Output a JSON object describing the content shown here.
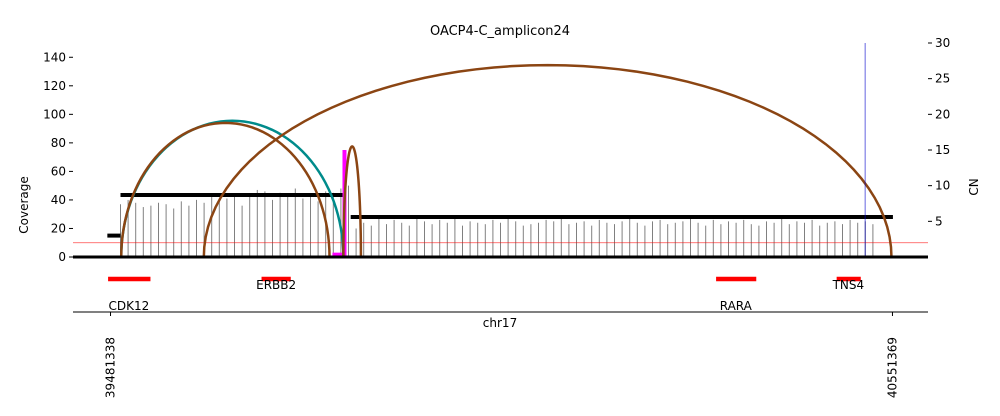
{
  "chart_data": {
    "type": "line",
    "title": "OACP4-C_amplicon24",
    "ylabel_left": "Coverage",
    "ylabel_right": "CN",
    "xlabel": "chr17",
    "xlim": [
      39430000,
      40600000
    ],
    "ylim_left": [
      0,
      150
    ],
    "ylim_right": [
      0,
      30
    ],
    "left_ticks": [
      0,
      20,
      40,
      60,
      80,
      100,
      120,
      140
    ],
    "right_ticks": [
      5,
      10,
      15,
      20,
      25,
      30
    ],
    "x_tick_labels": [
      "39481338",
      "40551369"
    ],
    "cn_threshold_line": 2,
    "coverage_bars": {
      "start": 39495000,
      "end": 40535000,
      "step": 10400,
      "heights": [
        37,
        40,
        38,
        35,
        36,
        38,
        37,
        34,
        39,
        36,
        40,
        38,
        42,
        39,
        41,
        44,
        36,
        43,
        47,
        46,
        40,
        45,
        44,
        48,
        41,
        43,
        39,
        46,
        45,
        48,
        50,
        20,
        24,
        22,
        27,
        23,
        26,
        24,
        22,
        28,
        25,
        23,
        26,
        24,
        27,
        22,
        25,
        24,
        23,
        26,
        24,
        28,
        25,
        22,
        23,
        24,
        26,
        25,
        27,
        23,
        24,
        25,
        22,
        26,
        24,
        23,
        25,
        27,
        24,
        22,
        25,
        26,
        23,
        24,
        25,
        28,
        24,
        22,
        26,
        23,
        25,
        24,
        26,
        23,
        22,
        25,
        24,
        27,
        23,
        25,
        24,
        26,
        22,
        24,
        25,
        23,
        26,
        24,
        25,
        23
      ]
    },
    "cn_segments": [
      {
        "x0": 39477000,
        "x1": 39495000,
        "cn": 3
      },
      {
        "x0": 39495000,
        "x1": 39802000,
        "cn": 8.7
      },
      {
        "x0": 39810000,
        "x1": 40552000,
        "cn": 5.6
      }
    ],
    "breakpoints": [
      {
        "x0": 39496000,
        "x1": 39800000,
        "cn_height": 19.1,
        "color": "#008b8b"
      },
      {
        "x0": 39496000,
        "x1": 39781000,
        "cn_height": 18.8,
        "color": "#8b4513"
      },
      {
        "x0": 39609000,
        "x1": 40550000,
        "cn_height": 26.9,
        "color": "#8b4513"
      },
      {
        "x0": 39800000,
        "x1": 39824000,
        "cn_height": 15.5,
        "color": "#8b4513"
      }
    ],
    "magenta_segments": [
      {
        "x0": 39785000,
        "x1": 39802000,
        "cn": 0.4
      },
      {
        "x0": 39800000,
        "x1": 39803000,
        "cn": 15
      }
    ],
    "blue_line_x": 40514000,
    "genes": [
      {
        "name": "CDK12",
        "x0": 39478000,
        "x1": 39536000,
        "label_x": 39481338,
        "label_row": 2
      },
      {
        "name": "ERBB2",
        "x0": 39688000,
        "x1": 39728000,
        "label_x": 39708000,
        "label_row": 1
      },
      {
        "name": "RARA",
        "x0": 40310000,
        "x1": 40365000,
        "label_x": 40337000,
        "label_row": 2
      },
      {
        "name": "TNS4",
        "x0": 40475000,
        "x1": 40508000,
        "label_x": 40491000,
        "label_row": 1
      }
    ],
    "colors": {
      "coverage_bar": "#808080",
      "cn_segment": "#000000",
      "gene": "#ff0000",
      "threshold": "#ff0000",
      "blue_line": "#0000cd",
      "magenta": "#ff00ff"
    }
  }
}
